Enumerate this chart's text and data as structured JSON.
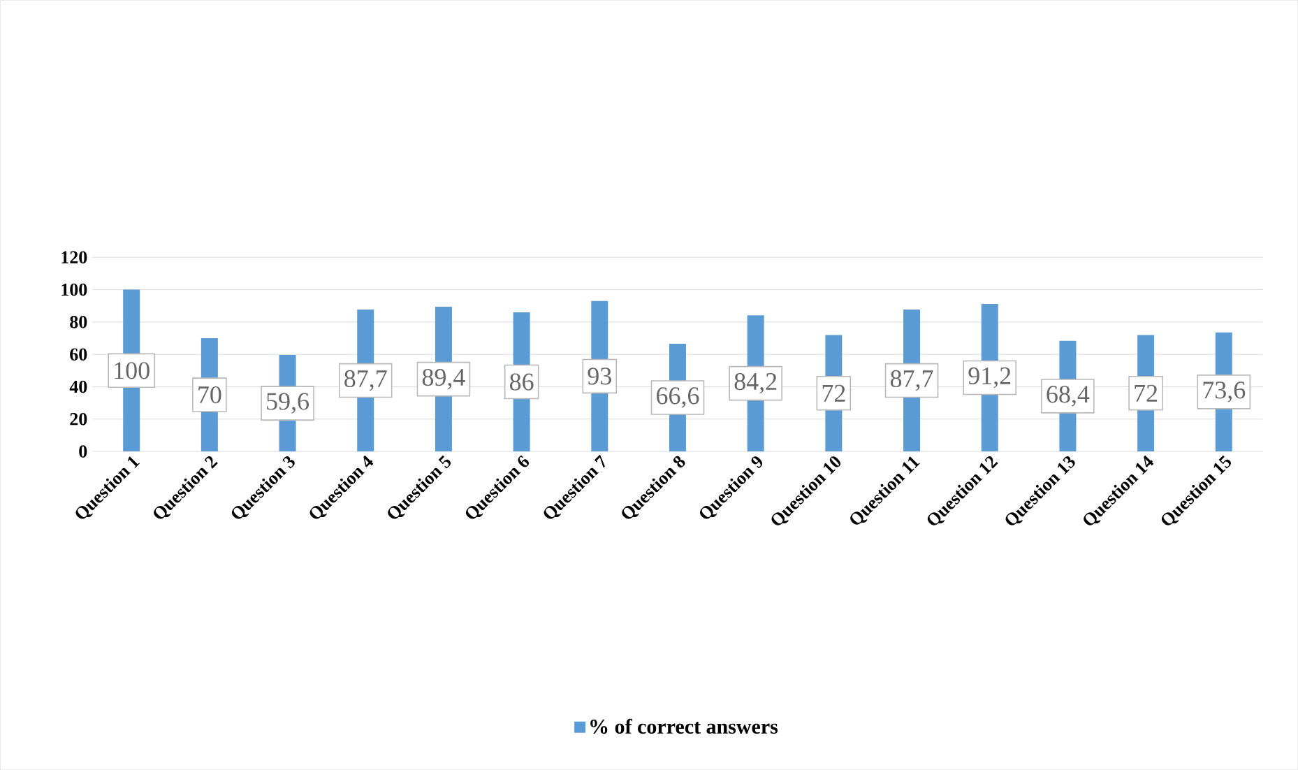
{
  "chart_data": {
    "type": "bar",
    "categories": [
      "Question 1",
      "Question 2",
      "Question 3",
      "Question 4",
      "Question 5",
      "Question 6",
      "Question 7",
      "Question 8",
      "Question 9",
      "Question 10",
      "Question 11",
      "Question 12",
      "Question 13",
      "Question 14",
      "Question 15"
    ],
    "series": [
      {
        "name": "% of correct answers",
        "color": "#5b9bd5",
        "values": [
          100,
          70,
          59.6,
          87.7,
          89.4,
          86,
          93,
          66.6,
          84.2,
          72,
          87.7,
          91.2,
          68.4,
          72,
          73.6
        ],
        "value_labels": [
          "100",
          "70",
          "59,6",
          "87,7",
          "89,4",
          "86",
          "93",
          "66,6",
          "84,2",
          "72",
          "87,7",
          "91,2",
          "68,4",
          "72",
          "73,6"
        ]
      }
    ],
    "ylim": [
      0,
      120
    ],
    "yticks": [
      0,
      20,
      40,
      60,
      80,
      100,
      120
    ],
    "grid": "y",
    "legend": "bottom"
  }
}
